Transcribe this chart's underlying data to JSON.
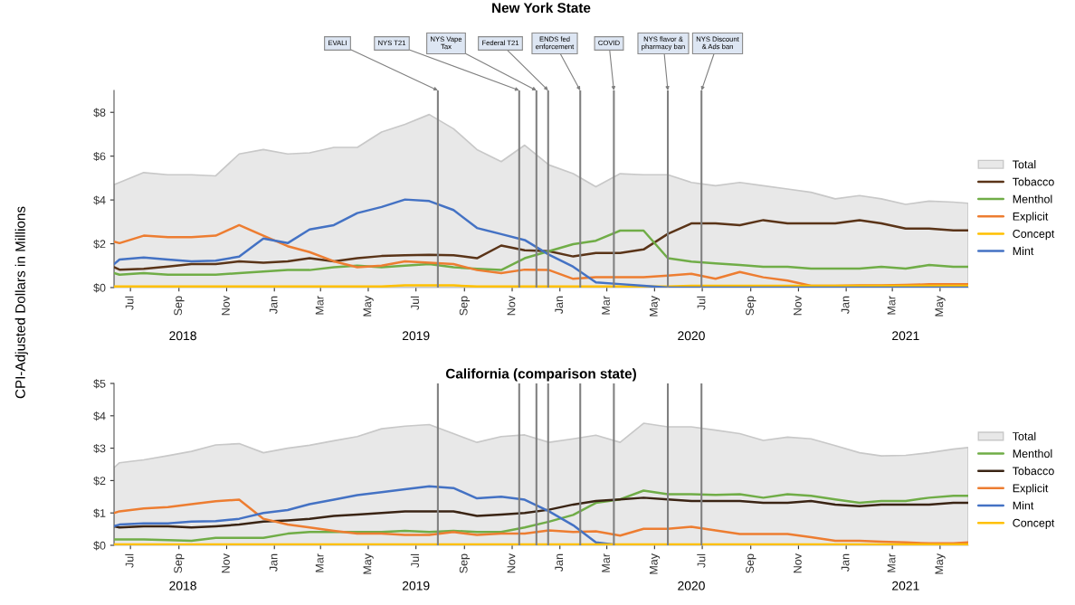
{
  "chart_data": [
    {
      "type": "line",
      "title": "New York State",
      "ylabel": "CPI-Adjusted Dollars in Millions",
      "x": [
        "2018-06-24",
        "2018-07-01",
        "2018-08-01",
        "2018-09-01",
        "2018-10-01",
        "2018-11-01",
        "2018-12-01",
        "2019-01-01",
        "2019-02-01",
        "2019-03-01",
        "2019-04-01",
        "2019-05-01",
        "2019-06-01",
        "2019-07-01",
        "2019-08-01",
        "2019-09-01",
        "2019-10-01",
        "2019-11-01",
        "2019-12-01",
        "2020-01-01",
        "2020-02-01",
        "2020-03-01",
        "2020-04-01",
        "2020-05-01",
        "2020-06-01",
        "2020-07-01",
        "2020-08-01",
        "2020-09-01",
        "2020-10-01",
        "2020-11-01",
        "2020-12-01",
        "2021-01-01",
        "2021-02-01",
        "2021-03-01",
        "2021-04-01",
        "2021-05-01",
        "2021-06-01",
        "2021-06-20"
      ],
      "series": [
        {
          "name": "Total",
          "type": "area",
          "color": "#e8e8e8",
          "values": [
            4.7,
            4.8,
            5.25,
            5.15,
            5.15,
            5.1,
            6.1,
            6.3,
            6.1,
            6.15,
            6.4,
            6.4,
            7.1,
            7.45,
            7.9,
            7.25,
            6.3,
            5.75,
            6.5,
            5.6,
            5.2,
            4.6,
            5.2,
            5.15,
            5.15,
            4.8,
            4.65,
            4.8,
            4.65,
            4.5,
            4.35,
            4.05,
            4.2,
            4.05,
            3.8,
            3.95,
            3.9,
            3.85
          ]
        },
        {
          "name": "Tobacco",
          "color": "#5a3418",
          "values": [
            0.93,
            0.82,
            0.86,
            0.96,
            1.07,
            1.07,
            1.2,
            1.14,
            1.2,
            1.34,
            1.2,
            1.34,
            1.44,
            1.48,
            1.5,
            1.48,
            1.34,
            1.92,
            1.7,
            1.66,
            1.42,
            1.58,
            1.58,
            1.74,
            2.45,
            2.93,
            2.93,
            2.85,
            3.08,
            2.93,
            2.93,
            2.93,
            3.08,
            2.93,
            2.69,
            2.69,
            2.61,
            2.61
          ]
        },
        {
          "name": "Menthol",
          "color": "#70ad47",
          "values": [
            0.66,
            0.59,
            0.66,
            0.59,
            0.59,
            0.59,
            0.66,
            0.73,
            0.8,
            0.8,
            0.93,
            1.0,
            0.93,
            1.0,
            1.07,
            0.93,
            0.86,
            0.8,
            1.34,
            1.66,
            1.98,
            2.14,
            2.6,
            2.6,
            1.34,
            1.19,
            1.1,
            1.03,
            0.95,
            0.95,
            0.87,
            0.87,
            0.87,
            0.95,
            0.87,
            1.03,
            0.95,
            0.95
          ]
        },
        {
          "name": "Explicit",
          "color": "#ed7d31",
          "values": [
            2.1,
            2.03,
            2.37,
            2.3,
            2.3,
            2.37,
            2.85,
            2.37,
            1.89,
            1.62,
            1.2,
            0.93,
            1.0,
            1.2,
            1.14,
            1.07,
            0.8,
            0.66,
            0.82,
            0.8,
            0.4,
            0.47,
            0.47,
            0.47,
            0.55,
            0.63,
            0.4,
            0.71,
            0.47,
            0.32,
            0.08,
            0.08,
            0.1,
            0.1,
            0.12,
            0.15,
            0.15,
            0.15
          ]
        },
        {
          "name": "Concept",
          "color": "#ffc000",
          "values": [
            0.05,
            0.05,
            0.05,
            0.05,
            0.05,
            0.05,
            0.05,
            0.05,
            0.05,
            0.05,
            0.05,
            0.05,
            0.05,
            0.1,
            0.1,
            0.1,
            0.05,
            0.05,
            0.05,
            0.05,
            0.05,
            0.05,
            0.05,
            0.05,
            0.05,
            0.08,
            0.08,
            0.08,
            0.08,
            0.08,
            0.08,
            0.08,
            0.08,
            0.08,
            0.08,
            0.08,
            0.08,
            0.08
          ]
        },
        {
          "name": "Mint",
          "color": "#4472c4",
          "values": [
            1.07,
            1.28,
            1.37,
            1.28,
            1.2,
            1.23,
            1.41,
            2.24,
            2.03,
            2.65,
            2.85,
            3.4,
            3.68,
            4.02,
            3.95,
            3.54,
            2.72,
            2.44,
            2.17,
            1.5,
            0.95,
            0.24,
            0.16,
            0.08,
            0.0,
            0.0,
            0.0,
            0.0,
            0.0,
            0.0,
            0.0,
            0.0,
            0.0,
            0.0,
            0.0,
            0.0,
            0.0,
            0.0
          ]
        }
      ],
      "xlim": [
        "2018-06-24",
        "2021-06-20"
      ],
      "x2lim": [
        "2018-06-24",
        "2021-06-20"
      ],
      "ylim": [
        0,
        9
      ],
      "yticks": [
        {
          "value": 0,
          "label": "$0"
        },
        {
          "value": 2,
          "label": "$2"
        },
        {
          "value": 4,
          "label": "$4"
        },
        {
          "value": 6,
          "label": "$6"
        },
        {
          "value": 8,
          "label": "$8"
        }
      ],
      "xticks": [
        {
          "value": "2018-07-15",
          "label": "Jul"
        },
        {
          "value": "2018-09-15",
          "label": "Sep"
        },
        {
          "value": "2018-11-15",
          "label": "Nov"
        },
        {
          "value": "2019-01-15",
          "label": "Jan"
        },
        {
          "value": "2019-03-15",
          "label": "Mar"
        },
        {
          "value": "2019-05-15",
          "label": "May"
        },
        {
          "value": "2019-07-15",
          "label": "Jul"
        },
        {
          "value": "2019-09-15",
          "label": "Sep"
        },
        {
          "value": "2019-11-15",
          "label": "Nov"
        },
        {
          "value": "2020-01-15",
          "label": "Jan"
        },
        {
          "value": "2020-03-15",
          "label": "Mar"
        },
        {
          "value": "2020-05-15",
          "label": "May"
        },
        {
          "value": "2020-07-15",
          "label": "Jul"
        },
        {
          "value": "2020-09-15",
          "label": "Sep"
        },
        {
          "value": "2020-11-15",
          "label": "Nov"
        },
        {
          "value": "2021-01-15",
          "label": "Jan"
        },
        {
          "value": "2021-03-15",
          "label": "Mar"
        },
        {
          "value": "2021-05-15",
          "label": "May"
        }
      ],
      "x2ticks": [
        {
          "value": "2018-09-20",
          "label": "2018"
        },
        {
          "value": "2019-07-15",
          "label": "2019"
        },
        {
          "value": "2020-07-01",
          "label": "2020"
        },
        {
          "value": "2021-04-01",
          "label": "2021"
        }
      ],
      "ref_lines": [
        {
          "axis": "x",
          "value": "2019-08-12",
          "label": "EVALI",
          "color": "#808080"
        },
        {
          "axis": "x",
          "value": "2019-11-24",
          "label": "NYS T21",
          "color": "#808080"
        },
        {
          "axis": "x",
          "value": "2019-12-16",
          "label": "NYS Vape\nTax",
          "color": "#808080"
        },
        {
          "axis": "x",
          "value": "2019-12-31",
          "label": "Federal T21",
          "color": "#808080"
        },
        {
          "axis": "x",
          "value": "2020-02-10",
          "label": "ENDS fed\nenforcement",
          "color": "#808080"
        },
        {
          "axis": "x",
          "value": "2020-03-24",
          "label": "COVID",
          "color": "#808080"
        },
        {
          "axis": "x",
          "value": "2020-06-01",
          "label": "NYS flavor &\npharmacy ban",
          "color": "#808080"
        },
        {
          "axis": "x",
          "value": "2020-07-14",
          "label": "NYS Discount\n& Ads ban",
          "color": "#808080"
        }
      ],
      "legend": "right",
      "grid": false
    },
    {
      "type": "line",
      "title": "California (comparison state)",
      "x": [
        "2018-06-24",
        "2018-07-01",
        "2018-08-01",
        "2018-09-01",
        "2018-10-01",
        "2018-11-01",
        "2018-12-01",
        "2019-01-01",
        "2019-02-01",
        "2019-03-01",
        "2019-04-01",
        "2019-05-01",
        "2019-06-01",
        "2019-07-01",
        "2019-08-01",
        "2019-09-01",
        "2019-10-01",
        "2019-11-01",
        "2019-12-01",
        "2020-01-01",
        "2020-02-01",
        "2020-03-01",
        "2020-04-01",
        "2020-05-01",
        "2020-06-01",
        "2020-07-01",
        "2020-08-01",
        "2020-09-01",
        "2020-10-01",
        "2020-11-01",
        "2020-12-01",
        "2021-01-01",
        "2021-02-01",
        "2021-03-01",
        "2021-04-01",
        "2021-05-01",
        "2021-06-01",
        "2021-06-20"
      ],
      "series": [
        {
          "name": "Total",
          "type": "area",
          "color": "#e8e8e8",
          "values": [
            2.4,
            2.55,
            2.64,
            2.77,
            2.9,
            3.1,
            3.14,
            2.86,
            3.0,
            3.09,
            3.23,
            3.36,
            3.6,
            3.68,
            3.73,
            3.45,
            3.18,
            3.36,
            3.41,
            3.18,
            3.29,
            3.4,
            3.18,
            3.77,
            3.66,
            3.66,
            3.56,
            3.45,
            3.24,
            3.34,
            3.29,
            3.08,
            2.86,
            2.76,
            2.78,
            2.86,
            2.97,
            3.02
          ]
        },
        {
          "name": "Menthol",
          "color": "#70ad47",
          "values": [
            0.18,
            0.18,
            0.18,
            0.16,
            0.14,
            0.23,
            0.23,
            0.23,
            0.36,
            0.41,
            0.41,
            0.41,
            0.41,
            0.45,
            0.41,
            0.45,
            0.41,
            0.41,
            0.55,
            0.73,
            0.94,
            1.31,
            1.42,
            1.69,
            1.58,
            1.58,
            1.56,
            1.58,
            1.47,
            1.58,
            1.53,
            1.42,
            1.31,
            1.37,
            1.37,
            1.47,
            1.53,
            1.53
          ]
        },
        {
          "name": "Tobacco",
          "color": "#3a2414",
          "values": [
            0.59,
            0.55,
            0.59,
            0.59,
            0.55,
            0.59,
            0.64,
            0.73,
            0.77,
            0.82,
            0.91,
            0.95,
            1.0,
            1.05,
            1.05,
            1.05,
            0.91,
            0.95,
            1.0,
            1.1,
            1.26,
            1.37,
            1.42,
            1.47,
            1.42,
            1.37,
            1.37,
            1.37,
            1.31,
            1.31,
            1.37,
            1.26,
            1.21,
            1.26,
            1.26,
            1.26,
            1.31,
            1.31
          ]
        },
        {
          "name": "Explicit",
          "color": "#ed7d31",
          "values": [
            1.0,
            1.05,
            1.14,
            1.18,
            1.27,
            1.36,
            1.41,
            0.82,
            0.64,
            0.55,
            0.45,
            0.36,
            0.36,
            0.32,
            0.32,
            0.41,
            0.32,
            0.36,
            0.36,
            0.46,
            0.41,
            0.43,
            0.3,
            0.51,
            0.51,
            0.57,
            0.46,
            0.35,
            0.35,
            0.35,
            0.25,
            0.14,
            0.14,
            0.11,
            0.09,
            0.06,
            0.06,
            0.09
          ]
        },
        {
          "name": "Mint",
          "color": "#4472c4",
          "values": [
            0.59,
            0.64,
            0.68,
            0.68,
            0.73,
            0.75,
            0.82,
            1.0,
            1.09,
            1.27,
            1.41,
            1.55,
            1.64,
            1.73,
            1.82,
            1.77,
            1.45,
            1.5,
            1.41,
            1.05,
            0.62,
            0.09,
            0.0,
            null,
            null,
            null,
            null,
            null,
            null,
            null,
            null,
            null,
            null,
            null,
            null,
            null,
            null,
            null
          ]
        },
        {
          "name": "Concept",
          "color": "#ffc000",
          "values": [
            0.03,
            0.03,
            0.03,
            0.03,
            0.03,
            0.03,
            0.03,
            0.03,
            0.03,
            0.03,
            0.03,
            0.03,
            0.03,
            0.03,
            0.03,
            0.03,
            0.03,
            0.03,
            0.03,
            0.03,
            0.03,
            0.03,
            0.03,
            0.03,
            0.03,
            0.03,
            0.03,
            0.03,
            0.03,
            0.03,
            0.03,
            0.03,
            0.03,
            0.03,
            0.03,
            0.03,
            0.03,
            0.03
          ]
        }
      ],
      "xlim": [
        "2018-06-24",
        "2021-06-20"
      ],
      "x2lim": [
        "2018-06-24",
        "2021-06-20"
      ],
      "ylim": [
        0,
        5
      ],
      "yticks": [
        {
          "value": 0,
          "label": "$0"
        },
        {
          "value": 1,
          "label": "$1"
        },
        {
          "value": 2,
          "label": "$2"
        },
        {
          "value": 3,
          "label": "$3"
        },
        {
          "value": 4,
          "label": "$4"
        },
        {
          "value": 5,
          "label": "$5"
        }
      ],
      "xticks": [
        {
          "value": "2018-07-15",
          "label": "Jul"
        },
        {
          "value": "2018-09-15",
          "label": "Sep"
        },
        {
          "value": "2018-11-15",
          "label": "Nov"
        },
        {
          "value": "2019-01-15",
          "label": "Jan"
        },
        {
          "value": "2019-03-15",
          "label": "Mar"
        },
        {
          "value": "2019-05-15",
          "label": "May"
        },
        {
          "value": "2019-07-15",
          "label": "Jul"
        },
        {
          "value": "2019-09-15",
          "label": "Sep"
        },
        {
          "value": "2019-11-15",
          "label": "Nov"
        },
        {
          "value": "2020-01-15",
          "label": "Jan"
        },
        {
          "value": "2020-03-15",
          "label": "Mar"
        },
        {
          "value": "2020-05-15",
          "label": "May"
        },
        {
          "value": "2020-07-15",
          "label": "Jul"
        },
        {
          "value": "2020-09-15",
          "label": "Sep"
        },
        {
          "value": "2020-11-15",
          "label": "Nov"
        },
        {
          "value": "2021-01-15",
          "label": "Jan"
        },
        {
          "value": "2021-03-15",
          "label": "Mar"
        },
        {
          "value": "2021-05-15",
          "label": "May"
        }
      ],
      "x2ticks": [
        {
          "value": "2018-09-20",
          "label": "2018"
        },
        {
          "value": "2019-07-15",
          "label": "2019"
        },
        {
          "value": "2020-07-01",
          "label": "2020"
        },
        {
          "value": "2021-04-01",
          "label": "2021"
        }
      ],
      "ref_lines": [
        {
          "axis": "x",
          "value": "2019-08-12",
          "color": "#808080"
        },
        {
          "axis": "x",
          "value": "2019-11-24",
          "color": "#808080"
        },
        {
          "axis": "x",
          "value": "2019-12-16",
          "color": "#808080"
        },
        {
          "axis": "x",
          "value": "2019-12-31",
          "color": "#808080"
        },
        {
          "axis": "x",
          "value": "2020-02-10",
          "color": "#808080"
        },
        {
          "axis": "x",
          "value": "2020-03-24",
          "color": "#808080"
        },
        {
          "axis": "x",
          "value": "2020-06-01",
          "color": "#808080"
        },
        {
          "axis": "x",
          "value": "2020-07-14",
          "color": "#808080"
        }
      ],
      "legend": "right",
      "grid": false
    }
  ]
}
